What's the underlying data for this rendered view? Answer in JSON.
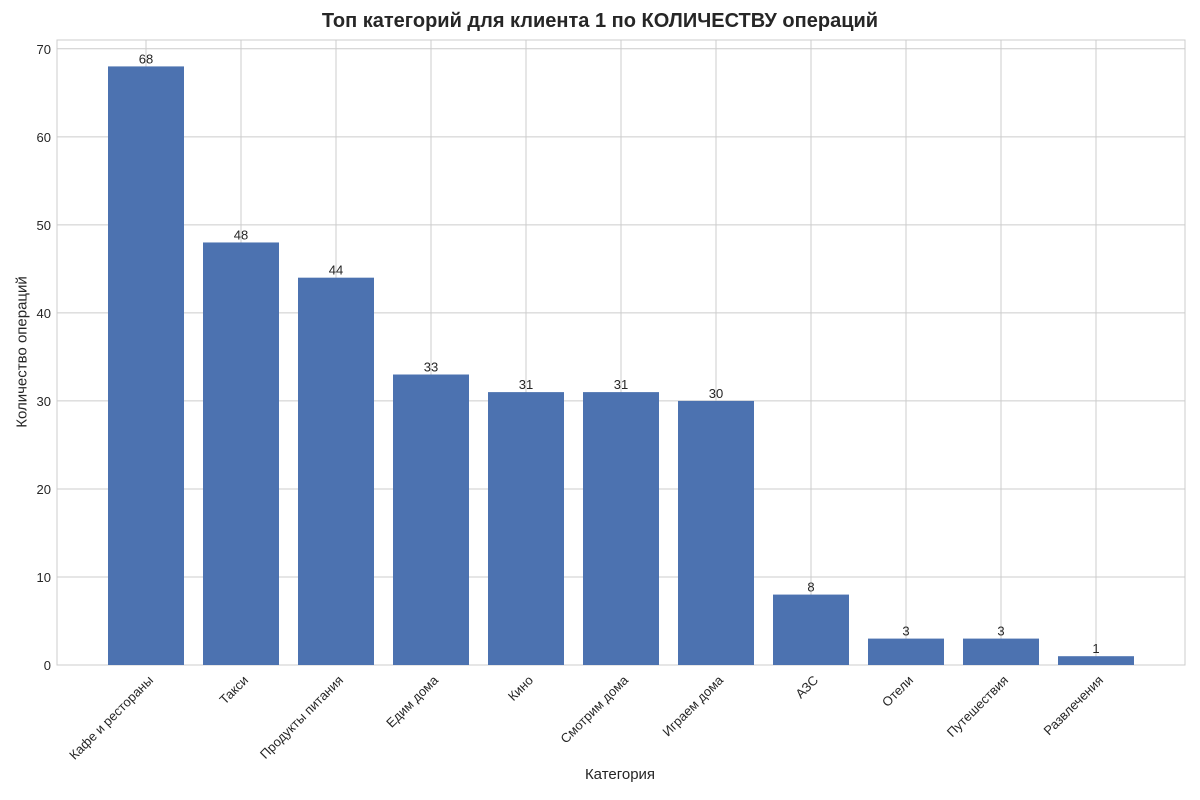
{
  "chart_data": {
    "type": "bar",
    "title": "Топ категорий для клиента 1 по КОЛИЧЕСТВУ операций",
    "xlabel": "Категория",
    "ylabel": "Количество операций",
    "categories": [
      "Кафе и рестораны",
      "Такси",
      "Продукты питания",
      "Едим дома",
      "Кино",
      "Смотрим дома",
      "Играем дома",
      "АЗС",
      "Отели",
      "Путешествия",
      "Развлечения"
    ],
    "values": [
      68,
      48,
      44,
      33,
      31,
      31,
      30,
      8,
      3,
      3,
      1
    ],
    "ylim": [
      0,
      71
    ],
    "yticks": [
      0,
      10,
      20,
      30,
      40,
      50,
      60,
      70
    ],
    "grid": true,
    "bar_color": "#4c72b0",
    "data_labels": true
  }
}
